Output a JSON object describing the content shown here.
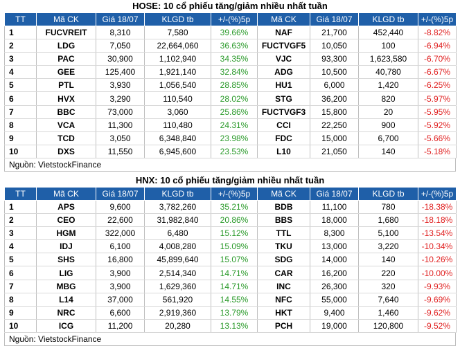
{
  "hose": {
    "title": "HOSE: 10 cổ phiếu tăng/giảm nhiều nhất tuần",
    "headers": [
      "TT",
      "Mã CK",
      "Giá 18/07",
      "KLGD tb",
      "+/-(%)5p",
      "Mã CK",
      "Giá 18/07",
      "KLGD tb",
      "+/-(%)5p"
    ],
    "rows": [
      {
        "tt": "1",
        "up_code": "FUCVREIT",
        "up_price": "8,310",
        "up_vol": "7,580",
        "up_pct": "39.66%",
        "down_code": "NAF",
        "down_price": "21,700",
        "down_vol": "452,440",
        "down_pct": "-8.82%"
      },
      {
        "tt": "2",
        "up_code": "LDG",
        "up_price": "7,050",
        "up_vol": "22,664,060",
        "up_pct": "36.63%",
        "down_code": "FUCTVGF5",
        "down_price": "10,050",
        "down_vol": "100",
        "down_pct": "-6.94%"
      },
      {
        "tt": "3",
        "up_code": "PAC",
        "up_price": "30,900",
        "up_vol": "1,102,940",
        "up_pct": "34.35%",
        "down_code": "VJC",
        "down_price": "93,300",
        "down_vol": "1,623,580",
        "down_pct": "-6.70%"
      },
      {
        "tt": "4",
        "up_code": "GEE",
        "up_price": "125,400",
        "up_vol": "1,921,140",
        "up_pct": "32.84%",
        "down_code": "ADG",
        "down_price": "10,500",
        "down_vol": "40,780",
        "down_pct": "-6.67%"
      },
      {
        "tt": "5",
        "up_code": "PTL",
        "up_price": "3,930",
        "up_vol": "1,056,540",
        "up_pct": "28.85%",
        "down_code": "HU1",
        "down_price": "6,000",
        "down_vol": "1,420",
        "down_pct": "-6.25%"
      },
      {
        "tt": "6",
        "up_code": "HVX",
        "up_price": "3,290",
        "up_vol": "110,540",
        "up_pct": "28.02%",
        "down_code": "STG",
        "down_price": "36,200",
        "down_vol": "820",
        "down_pct": "-5.97%"
      },
      {
        "tt": "7",
        "up_code": "BBC",
        "up_price": "73,000",
        "up_vol": "3,060",
        "up_pct": "25.86%",
        "down_code": "FUCTVGF3",
        "down_price": "15,800",
        "down_vol": "20",
        "down_pct": "-5.95%"
      },
      {
        "tt": "8",
        "up_code": "VCA",
        "up_price": "11,300",
        "up_vol": "110,480",
        "up_pct": "24.31%",
        "down_code": "CCI",
        "down_price": "22,250",
        "down_vol": "900",
        "down_pct": "-5.92%"
      },
      {
        "tt": "9",
        "up_code": "TCD",
        "up_price": "3,050",
        "up_vol": "6,348,840",
        "up_pct": "23.98%",
        "down_code": "FDC",
        "down_price": "15,000",
        "down_vol": "6,700",
        "down_pct": "-5.66%"
      },
      {
        "tt": "10",
        "up_code": "DXS",
        "up_price": "11,550",
        "up_vol": "6,945,600",
        "up_pct": "23.53%",
        "down_code": "L10",
        "down_price": "21,050",
        "down_vol": "140",
        "down_pct": "-5.18%"
      }
    ],
    "source": "Nguồn: VietstockFinance"
  },
  "hnx": {
    "title": "HNX: 10 cổ phiếu tăng/giảm nhiều nhất tuần",
    "headers": [
      "TT",
      "Mã CK",
      "Giá 18/07",
      "KLGD tb",
      "+/-(%)5p",
      "Mã CK",
      "Giá 18/07",
      "KLGD tb",
      "+/-(%)5p"
    ],
    "rows": [
      {
        "tt": "1",
        "up_code": "APS",
        "up_price": "9,600",
        "up_vol": "3,782,260",
        "up_pct": "35.21%",
        "down_code": "BDB",
        "down_price": "11,100",
        "down_vol": "780",
        "down_pct": "-18.38%"
      },
      {
        "tt": "2",
        "up_code": "CEO",
        "up_price": "22,600",
        "up_vol": "31,982,840",
        "up_pct": "20.86%",
        "down_code": "BBS",
        "down_price": "18,000",
        "down_vol": "1,680",
        "down_pct": "-18.18%"
      },
      {
        "tt": "3",
        "up_code": "HGM",
        "up_price": "322,000",
        "up_vol": "6,480",
        "up_pct": "15.12%",
        "down_code": "TTL",
        "down_price": "8,300",
        "down_vol": "5,100",
        "down_pct": "-13.54%"
      },
      {
        "tt": "4",
        "up_code": "IDJ",
        "up_price": "6,100",
        "up_vol": "4,008,280",
        "up_pct": "15.09%",
        "down_code": "TKU",
        "down_price": "13,000",
        "down_vol": "3,220",
        "down_pct": "-10.34%"
      },
      {
        "tt": "5",
        "up_code": "SHS",
        "up_price": "16,800",
        "up_vol": "45,899,640",
        "up_pct": "15.07%",
        "down_code": "SDG",
        "down_price": "14,000",
        "down_vol": "140",
        "down_pct": "-10.26%"
      },
      {
        "tt": "6",
        "up_code": "LIG",
        "up_price": "3,900",
        "up_vol": "2,514,340",
        "up_pct": "14.71%",
        "down_code": "CAR",
        "down_price": "16,200",
        "down_vol": "220",
        "down_pct": "-10.00%"
      },
      {
        "tt": "7",
        "up_code": "MBG",
        "up_price": "3,900",
        "up_vol": "1,629,360",
        "up_pct": "14.71%",
        "down_code": "INC",
        "down_price": "26,300",
        "down_vol": "320",
        "down_pct": "-9.93%"
      },
      {
        "tt": "8",
        "up_code": "L14",
        "up_price": "37,000",
        "up_vol": "561,920",
        "up_pct": "14.55%",
        "down_code": "NFC",
        "down_price": "55,000",
        "down_vol": "7,640",
        "down_pct": "-9.69%"
      },
      {
        "tt": "9",
        "up_code": "NRC",
        "up_price": "6,600",
        "up_vol": "2,919,360",
        "up_pct": "13.79%",
        "down_code": "HKT",
        "down_price": "9,400",
        "down_vol": "1,460",
        "down_pct": "-9.62%"
      },
      {
        "tt": "10",
        "up_code": "ICG",
        "up_price": "11,200",
        "up_vol": "20,280",
        "up_pct": "13.13%",
        "down_code": "PCH",
        "down_price": "19,000",
        "down_vol": "120,800",
        "down_pct": "-9.52%"
      }
    ],
    "source": "Nguồn: VietstockFinance"
  },
  "colors": {
    "header_bg": "#1f5fa8",
    "positive": "#2a9a2a",
    "negative": "#e02020"
  }
}
